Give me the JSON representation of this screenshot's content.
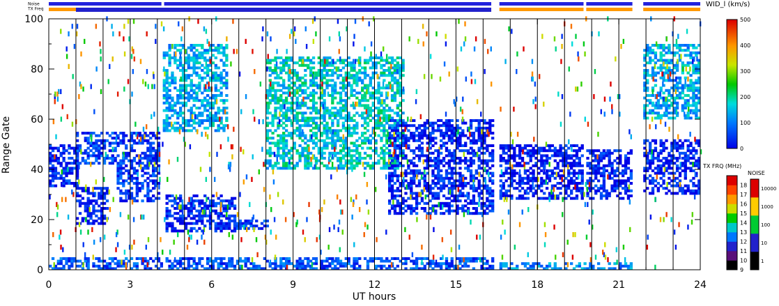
{
  "chart_data": {
    "type": "heatmap",
    "title": "",
    "xlabel": "UT hours",
    "ylabel": "Range Gate",
    "xlim": [
      0,
      24
    ],
    "ylim": [
      0,
      100
    ],
    "x_ticks": [
      0,
      3,
      6,
      9,
      12,
      15,
      18,
      21,
      24
    ],
    "y_ticks": [
      0,
      20,
      40,
      60,
      80,
      100
    ],
    "grid": "vertical lines at scan boundaries",
    "noise_label": "Noise",
    "txfreq_label": "TX Freq",
    "noise_bar_segments": [
      [
        0,
        4.15
      ],
      [
        4.25,
        16.3
      ],
      [
        16.6,
        19.7
      ],
      [
        19.8,
        21.5
      ],
      [
        21.9,
        24
      ]
    ],
    "txfreq_bar_segments": [
      [
        0,
        16.3
      ],
      [
        16.6,
        19.7
      ],
      [
        19.8,
        21.5
      ],
      [
        21.9,
        24
      ]
    ],
    "noise_bar_color": "#2222dd",
    "txfreq_bar_color": "#ff9900",
    "data_gaps": [
      [
        16.3,
        16.6
      ],
      [
        21.5,
        21.9
      ]
    ],
    "scan_lines": [
      1,
      2,
      3,
      4,
      5,
      6,
      7,
      8,
      9,
      10,
      11,
      12,
      13,
      14,
      15,
      16,
      17,
      18,
      19,
      20,
      21,
      22,
      23
    ],
    "width_scale": {
      "title": "WID_l (km/s)",
      "min": 0,
      "max": 500,
      "ticks": [
        0,
        100,
        200,
        300,
        400,
        500
      ]
    },
    "txfreq_scale": {
      "title": "TX FRQ (MHz)",
      "levels": [
        9,
        10,
        11,
        12,
        13,
        14,
        15,
        16,
        17,
        18
      ],
      "colors": [
        "#000000",
        "#5a0f7a",
        "#2222cc",
        "#0077ff",
        "#00c8c8",
        "#00cc00",
        "#ccdd00",
        "#ff9900",
        "#ff4400",
        "#dd0000"
      ]
    },
    "noise_scale": {
      "title": "NOISE",
      "levels": [
        "1",
        "10",
        "100",
        "1000",
        "10000"
      ],
      "colors": [
        "#000000",
        "#2222cc",
        "#00cc33",
        "#ffcc00",
        "#dd0000"
      ]
    },
    "regions": [
      {
        "name": "low-band",
        "x": [
          0,
          16.3
        ],
        "gate": [
          0,
          5
        ],
        "value": 80
      },
      {
        "name": "low-band-2",
        "x": [
          16.6,
          21.5
        ],
        "gate": [
          0,
          3
        ],
        "value": 120
      },
      {
        "name": "early-a",
        "x": [
          0,
          1
        ],
        "gate": [
          33,
          50
        ],
        "value": 40
      },
      {
        "name": "early-b",
        "x": [
          1,
          2.2
        ],
        "gate": [
          18,
          33
        ],
        "value": 30
      },
      {
        "name": "early-c",
        "x": [
          1,
          2.5
        ],
        "gate": [
          42,
          55
        ],
        "value": 60
      },
      {
        "name": "early-d",
        "x": [
          2.5,
          4.1
        ],
        "gate": [
          27,
          55
        ],
        "value": 50
      },
      {
        "name": "mid-a",
        "x": [
          4.3,
          6.8
        ],
        "gate": [
          15,
          30
        ],
        "value": 40
      },
      {
        "name": "mid-b",
        "x": [
          6.8,
          8
        ],
        "gate": [
          16,
          20
        ],
        "value": 60
      },
      {
        "name": "arc-rise",
        "x": [
          4.2,
          6.5
        ],
        "gate": [
          55,
          90
        ],
        "value": 150
      },
      {
        "name": "noon",
        "x": [
          8,
          13
        ],
        "gate": [
          40,
          85
        ],
        "value": 180
      },
      {
        "name": "arc-fall",
        "x": [
          12.5,
          16.3
        ],
        "gate": [
          22,
          60
        ],
        "value": 40
      },
      {
        "name": "late-a",
        "x": [
          16.6,
          19.7
        ],
        "gate": [
          28,
          50
        ],
        "value": 30
      },
      {
        "name": "late-b",
        "x": [
          19.8,
          21.5
        ],
        "gate": [
          28,
          48
        ],
        "value": 40
      },
      {
        "name": "late-c",
        "x": [
          21.9,
          24
        ],
        "gate": [
          30,
          52
        ],
        "value": 30
      },
      {
        "name": "late-d",
        "x": [
          21.9,
          24
        ],
        "gate": [
          60,
          90
        ],
        "value": 150
      }
    ]
  }
}
